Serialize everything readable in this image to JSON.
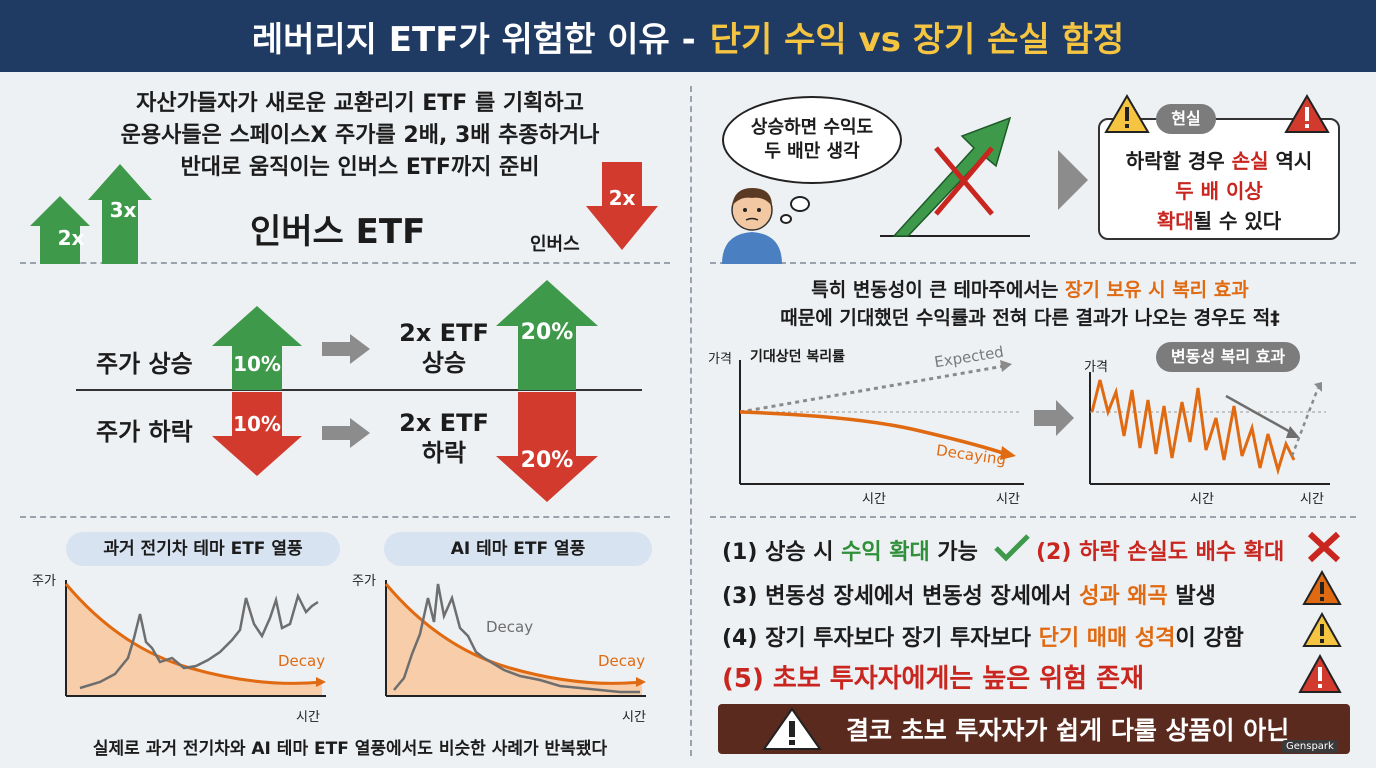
{
  "header": {
    "title_part1": "레버리지 ETF가 위험한 이유 -",
    "title_part2": "단기 수익 vs 장기 손실 함정"
  },
  "left_top": {
    "intro": [
      "자산가들자가 새로운 교환리기 ETF 를 기획하고",
      "운용사들은 스페이스X 주가를 2배, 3배 추종하거나",
      "반대로 움직이는 인버스 ETF까지 준비"
    ],
    "arrow_2x": "2x",
    "arrow_3x": "3x",
    "inverse_title": "인버스 ETF",
    "inverse_arrow": "2x",
    "inverse_label": "인버스"
  },
  "left_mid": {
    "up_label": "주가 상승",
    "down_label": "주가 하락",
    "up_pct": "10%",
    "down_pct": "10%",
    "etf_up_line1": "2x ETF",
    "etf_up_line2": "상승",
    "etf_down_line1": "2x ETF",
    "etf_down_line2": "하락",
    "etf_up_pct": "20%",
    "etf_down_pct": "20%"
  },
  "left_bottom": {
    "chart1_title": "과거 전기차 테마 ETF 열풍",
    "chart2_title": "AI 테마 ETF 열풍",
    "y_label": "주가",
    "x_label": "시간",
    "decay": "Decay",
    "decay2": "Decay",
    "caption": "실제로 과거 전기차와 AI 테마 ETF 열풍에서도 비슷한 사례가 반복됐다"
  },
  "right_top": {
    "thought_line1": "상승하면 수익도",
    "thought_line2": "두 배만 생각",
    "reality_label": "현실",
    "reality_line1a": "하락할 경우 ",
    "reality_line1b": "손실",
    "reality_line1c": " 역시",
    "reality_line2": "두 배 이상",
    "reality_line3a": "확대",
    "reality_line3b": "될 수 있다"
  },
  "right_mid": {
    "line1a": "특히 변동성이 큰 테마주에서는 ",
    "line1b": "장기 보유 시 복리 효과",
    "line2": "때문에 기대했던 수익률과 전혀 다른 결과가 나오는 경우도 적‡",
    "chart1_y": "가격",
    "chart1_title": "기대상던 복리률",
    "expected": "Expected",
    "decaying": "Decaying",
    "x_label": "시간",
    "chart2_y": "가격",
    "chart2_title": "변동성 복리 효과",
    "x_label2": "시간"
  },
  "right_bottom": {
    "item1a": "(1) 상승 시 ",
    "item1b": "수익 확대",
    "item1c": " 가능",
    "item2": "(2) 하락 손실도 배수 확대",
    "item3a": "(3) 변동성 장세에서 변동성 장세에서 ",
    "item3b": "성과 왜곡",
    "item3c": " 발생",
    "item4a": "(4) 장기 투자보다 장기 투자보다 ",
    "item4b": "단기 매매 성격",
    "item4c": "이 강함",
    "item5": "(5) 초보 투자자에게는 높은 위험 존재",
    "footer": "결코 초보 투자자가 쉽게 다룰 상품이 아닌",
    "watermark": "Genspark"
  },
  "colors": {
    "header_bg": "#1f3b63",
    "accent_yellow": "#f5c542",
    "green": "#3e9a4a",
    "red": "#d23a2e",
    "orange": "#e06a12"
  }
}
